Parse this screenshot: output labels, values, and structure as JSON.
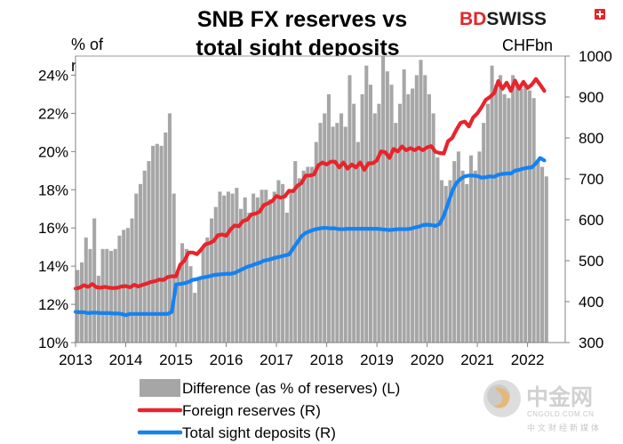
{
  "brand": {
    "part1": "BD",
    "part2": "SWISS",
    "logo_lettering": "BDSWISS"
  },
  "watermark": {
    "name": "中金网",
    "domain": "CNGOLD.COM.CN",
    "tagline": "中文财经新媒体"
  },
  "colors": {
    "bars": "#a6a6a6",
    "foreign_reserves": "#e8242c",
    "sight_deposits": "#1582f0",
    "brand_red": "#e3262a"
  },
  "chart_data": {
    "type": "bar",
    "title_lines": [
      "SNB FX reserves vs",
      "total sight deposits"
    ],
    "left_axis": {
      "unit_lines": [
        "% of",
        "reserves"
      ],
      "range": [
        10,
        25
      ],
      "ticks": [
        "10%",
        "12%",
        "14%",
        "16%",
        "18%",
        "20%",
        "22%",
        "24%"
      ],
      "tick_values": [
        10,
        12,
        14,
        16,
        18,
        20,
        22,
        24
      ]
    },
    "right_axis": {
      "unit": "CHFbn",
      "range": [
        300,
        1000
      ],
      "ticks": [
        "300",
        "400",
        "500",
        "600",
        "700",
        "800",
        "900",
        "1000"
      ],
      "tick_values": [
        300,
        400,
        500,
        600,
        700,
        800,
        900,
        1000
      ]
    },
    "x_axis": {
      "range": [
        2013,
        2022.75
      ],
      "ticks": [
        "2013",
        "2014",
        "2015",
        "2016",
        "2017",
        "2018",
        "2019",
        "2020",
        "2021",
        "2022"
      ],
      "tick_values": [
        2013,
        2014,
        2015,
        2016,
        2017,
        2018,
        2019,
        2020,
        2021,
        2022
      ]
    },
    "legend": [
      {
        "label": "Difference (as % of reserves) (L)",
        "kind": "bar"
      },
      {
        "label": "Foreign reserves (R)",
        "kind": "line",
        "series": "foreign_reserves"
      },
      {
        "label": "Total sight deposits (R)",
        "kind": "line",
        "series": "sight_deposits"
      }
    ],
    "series": [
      {
        "name": "Difference (as % of reserves)",
        "axis": "left",
        "kind": "bar",
        "x": [
          2013.0,
          2013.083,
          2013.167,
          2013.25,
          2013.333,
          2013.417,
          2013.5,
          2013.583,
          2013.667,
          2013.75,
          2013.833,
          2013.917,
          2014.0,
          2014.083,
          2014.167,
          2014.25,
          2014.333,
          2014.417,
          2014.5,
          2014.583,
          2014.667,
          2014.75,
          2014.833,
          2014.917,
          2015.0,
          2015.083,
          2015.167,
          2015.25,
          2015.333,
          2015.417,
          2015.5,
          2015.583,
          2015.667,
          2015.75,
          2015.833,
          2015.917,
          2016.0,
          2016.083,
          2016.167,
          2016.25,
          2016.333,
          2016.417,
          2016.5,
          2016.583,
          2016.667,
          2016.75,
          2016.833,
          2016.917,
          2017.0,
          2017.083,
          2017.167,
          2017.25,
          2017.333,
          2017.417,
          2017.5,
          2017.583,
          2017.667,
          2017.75,
          2017.833,
          2017.917,
          2018.0,
          2018.083,
          2018.167,
          2018.25,
          2018.333,
          2018.417,
          2018.5,
          2018.583,
          2018.667,
          2018.75,
          2018.833,
          2018.917,
          2019.0,
          2019.083,
          2019.167,
          2019.25,
          2019.333,
          2019.417,
          2019.5,
          2019.583,
          2019.667,
          2019.75,
          2019.833,
          2019.917,
          2020.0,
          2020.083,
          2020.167,
          2020.25,
          2020.333,
          2020.417,
          2020.5,
          2020.583,
          2020.667,
          2020.75,
          2020.833,
          2020.917,
          2021.0,
          2021.083,
          2021.167,
          2021.25,
          2021.333,
          2021.417,
          2021.5,
          2021.583,
          2021.667,
          2021.75,
          2021.833,
          2021.917,
          2022.0,
          2022.083,
          2022.167,
          2022.25,
          2022.333
        ],
        "values": [
          13.8,
          14.2,
          15.5,
          14.9,
          16.5,
          13.5,
          14.9,
          14.9,
          14.8,
          14.9,
          15.6,
          15.9,
          16.0,
          16.5,
          17.8,
          18.3,
          19.0,
          19.5,
          20.3,
          20.4,
          20.3,
          21.0,
          22.0,
          17.8,
          13.7,
          15.2,
          14.9,
          14.0,
          12.6,
          13.3,
          15.0,
          15.5,
          16.5,
          17.1,
          17.9,
          17.7,
          17.9,
          17.8,
          18.1,
          17.0,
          17.6,
          16.8,
          17.8,
          17.6,
          18.0,
          18.0,
          17.5,
          17.9,
          18.5,
          18.3,
          16.8,
          17.9,
          19.5,
          18.6,
          19.0,
          19.2,
          19.2,
          20.5,
          21.5,
          22.0,
          23.0,
          21.3,
          21.5,
          22.0,
          21.3,
          24.0,
          22.5,
          20.5,
          23.0,
          24.5,
          23.5,
          22.0,
          22.5,
          25.0,
          24.2,
          23.5,
          21.5,
          22.5,
          24.3,
          23.0,
          23.3,
          24.0,
          24.8,
          24.0,
          23.0,
          22.0,
          19.7,
          18.5,
          18.2,
          18.5,
          19.5,
          20.0,
          19.0,
          18.3,
          19.8,
          19.0,
          20.0,
          21.5,
          22.5,
          24.5,
          23.5,
          24.0,
          23.0,
          22.8,
          24.0,
          23.5,
          23.3,
          23.5,
          23.2,
          22.8,
          19.5,
          19.2,
          18.7
        ]
      },
      {
        "name": "Foreign reserves",
        "axis": "right",
        "kind": "line",
        "x": [
          2013.0,
          2013.083,
          2013.167,
          2013.25,
          2013.333,
          2013.417,
          2013.5,
          2013.583,
          2013.667,
          2013.75,
          2013.833,
          2013.917,
          2014.0,
          2014.083,
          2014.167,
          2014.25,
          2014.333,
          2014.417,
          2014.5,
          2014.583,
          2014.667,
          2014.75,
          2014.833,
          2014.917,
          2015.0,
          2015.083,
          2015.167,
          2015.25,
          2015.333,
          2015.417,
          2015.5,
          2015.583,
          2015.667,
          2015.75,
          2015.833,
          2015.917,
          2016.0,
          2016.083,
          2016.167,
          2016.25,
          2016.333,
          2016.417,
          2016.5,
          2016.583,
          2016.667,
          2016.75,
          2016.833,
          2016.917,
          2017.0,
          2017.083,
          2017.167,
          2017.25,
          2017.333,
          2017.417,
          2017.5,
          2017.583,
          2017.667,
          2017.75,
          2017.833,
          2017.917,
          2018.0,
          2018.083,
          2018.167,
          2018.25,
          2018.333,
          2018.417,
          2018.5,
          2018.583,
          2018.667,
          2018.75,
          2018.833,
          2018.917,
          2019.0,
          2019.083,
          2019.167,
          2019.25,
          2019.333,
          2019.417,
          2019.5,
          2019.583,
          2019.667,
          2019.75,
          2019.833,
          2019.917,
          2020.0,
          2020.083,
          2020.167,
          2020.25,
          2020.333,
          2020.417,
          2020.5,
          2020.583,
          2020.667,
          2020.75,
          2020.833,
          2020.917,
          2021.0,
          2021.083,
          2021.167,
          2021.25,
          2021.333,
          2021.417,
          2021.5,
          2021.583,
          2021.667,
          2021.75,
          2021.833,
          2021.917,
          2022.0,
          2022.083,
          2022.167,
          2022.25,
          2022.333
        ],
        "values": [
          432,
          434,
          440,
          436,
          443,
          435,
          434,
          436,
          434,
          433,
          434,
          437,
          438,
          435,
          441,
          437,
          441,
          444,
          448,
          450,
          454,
          453,
          460,
          462,
          462,
          490,
          500,
          520,
          520,
          516,
          527,
          540,
          543,
          548,
          562,
          564,
          561,
          576,
          586,
          584,
          597,
          600,
          613,
          615,
          620,
          636,
          640,
          646,
          658,
          654,
          657,
          671,
          670,
          683,
          690,
          708,
          708,
          711,
          733,
          740,
          735,
          742,
          742,
          728,
          740,
          725,
          735,
          728,
          740,
          722,
          738,
          738,
          745,
          767,
          765,
          751,
          773,
          767,
          779,
          770,
          775,
          770,
          776,
          770,
          777,
          780,
          766,
          763,
          762,
          792,
          800,
          820,
          837,
          840,
          828,
          850,
          860,
          875,
          893,
          900,
          909,
          939,
          920,
          935,
          915,
          940,
          920,
          937,
          922,
          930,
          944,
          930,
          915
        ]
      },
      {
        "name": "Total sight deposits",
        "axis": "right",
        "kind": "line",
        "x": [
          2013.0,
          2013.083,
          2013.167,
          2013.25,
          2013.333,
          2013.417,
          2013.5,
          2013.583,
          2013.667,
          2013.75,
          2013.833,
          2013.917,
          2014.0,
          2014.083,
          2014.167,
          2014.25,
          2014.333,
          2014.417,
          2014.5,
          2014.583,
          2014.667,
          2014.75,
          2014.833,
          2014.917,
          2015.0,
          2015.083,
          2015.167,
          2015.25,
          2015.333,
          2015.417,
          2015.5,
          2015.583,
          2015.667,
          2015.75,
          2015.833,
          2015.917,
          2016.0,
          2016.083,
          2016.167,
          2016.25,
          2016.333,
          2016.417,
          2016.5,
          2016.583,
          2016.667,
          2016.75,
          2016.833,
          2016.917,
          2017.0,
          2017.083,
          2017.167,
          2017.25,
          2017.333,
          2017.417,
          2017.5,
          2017.583,
          2017.667,
          2017.75,
          2017.833,
          2017.917,
          2018.0,
          2018.083,
          2018.167,
          2018.25,
          2018.333,
          2018.417,
          2018.5,
          2018.583,
          2018.667,
          2018.75,
          2018.833,
          2018.917,
          2019.0,
          2019.083,
          2019.167,
          2019.25,
          2019.333,
          2019.417,
          2019.5,
          2019.583,
          2019.667,
          2019.75,
          2019.833,
          2019.917,
          2020.0,
          2020.083,
          2020.167,
          2020.25,
          2020.333,
          2020.417,
          2020.5,
          2020.583,
          2020.667,
          2020.75,
          2020.833,
          2020.917,
          2021.0,
          2021.083,
          2021.167,
          2021.25,
          2021.333,
          2021.417,
          2021.5,
          2021.583,
          2021.667,
          2021.75,
          2021.833,
          2021.917,
          2022.0,
          2022.083,
          2022.167,
          2022.25,
          2022.333
        ],
        "values": [
          375,
          374,
          374,
          372,
          373,
          373,
          372,
          372,
          372,
          371,
          371,
          370,
          367,
          370,
          370,
          370,
          370,
          370,
          370,
          370,
          370,
          370,
          370,
          375,
          442,
          443,
          445,
          448,
          453,
          455,
          458,
          460,
          462,
          465,
          466,
          467,
          468,
          468,
          470,
          475,
          480,
          485,
          488,
          492,
          495,
          500,
          502,
          505,
          508,
          510,
          513,
          515,
          530,
          545,
          560,
          568,
          572,
          576,
          578,
          580,
          580,
          579,
          579,
          577,
          577,
          578,
          578,
          578,
          578,
          578,
          578,
          578,
          578,
          577,
          576,
          575,
          576,
          577,
          577,
          577,
          578,
          581,
          583,
          587,
          588,
          587,
          585,
          590,
          610,
          640,
          670,
          690,
          700,
          706,
          708,
          708,
          707,
          703,
          704,
          706,
          705,
          710,
          712,
          713,
          713,
          720,
          722,
          725,
          727,
          728,
          738,
          751,
          745
        ]
      }
    ]
  }
}
